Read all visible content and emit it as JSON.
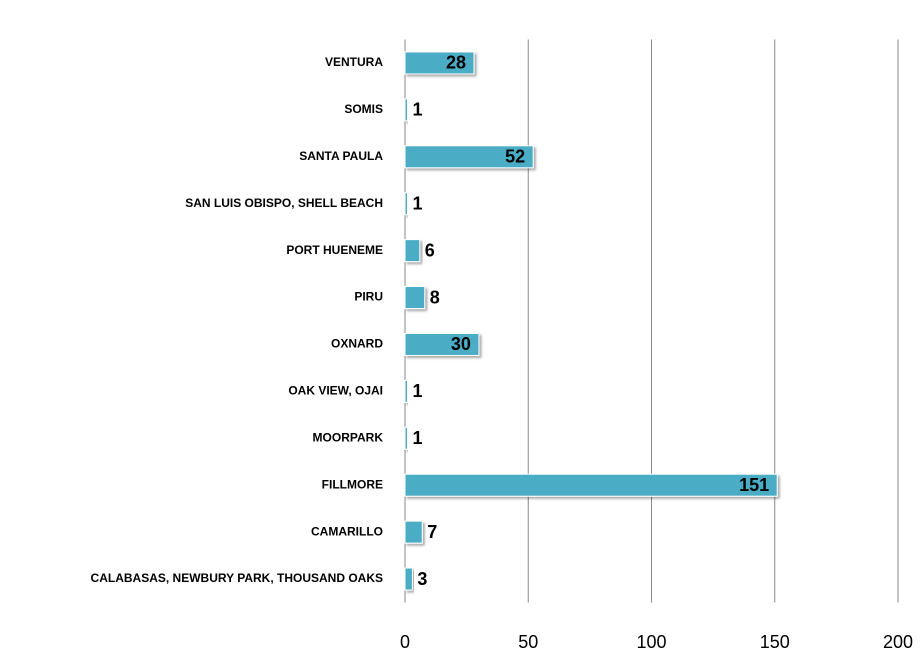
{
  "chart_data": {
    "type": "bar",
    "orientation": "horizontal",
    "categories": [
      "VENTURA",
      "SOMIS",
      "SANTA PAULA",
      "SAN LUIS OBISPO, SHELL BEACH",
      "PORT HUENEME",
      "PIRU",
      "OXNARD",
      "OAK VIEW, OJAI",
      "MOORPARK",
      "FILLMORE",
      "CAMARILLO",
      "CALABASAS, NEWBURY PARK, THOUSAND OAKS"
    ],
    "values": [
      28,
      1,
      52,
      1,
      6,
      8,
      30,
      1,
      1,
      151,
      7,
      3
    ],
    "color": "#4bacc6",
    "xlim": [
      0,
      200
    ],
    "xticks": [
      0,
      50,
      100,
      150,
      200
    ],
    "grid": true
  }
}
